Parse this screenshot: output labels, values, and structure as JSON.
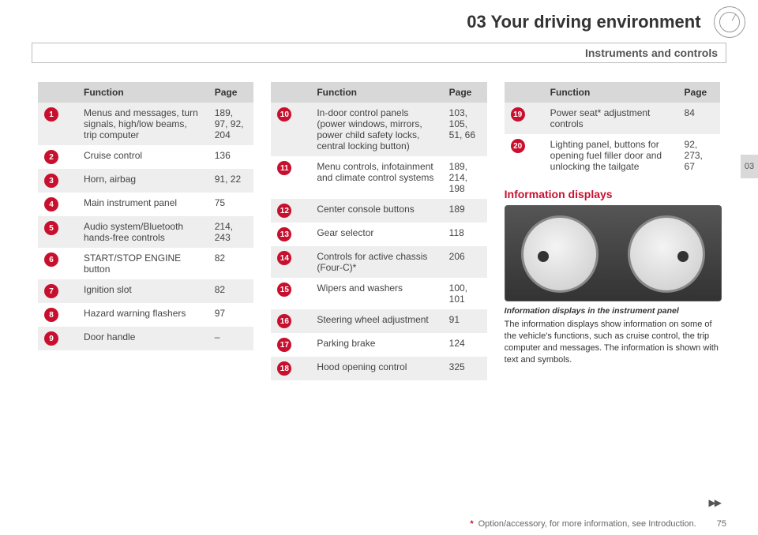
{
  "header": {
    "title": "03 Your driving environment",
    "subtitle": "Instruments and controls"
  },
  "sideTab": "03",
  "tableHeaders": {
    "func": "Function",
    "page": "Page"
  },
  "bullet_colors": {
    "default": "#c8102e",
    "alt": "#8a1a1a"
  },
  "col1": [
    {
      "n": "1",
      "func": "Menus and messages, turn signals, high/low beams, trip computer",
      "page": "189, 97, 92, 204"
    },
    {
      "n": "2",
      "func": "Cruise control",
      "page": "136"
    },
    {
      "n": "3",
      "func": "Horn, airbag",
      "page": "91, 22"
    },
    {
      "n": "4",
      "func": "Main instrument panel",
      "page": "75"
    },
    {
      "n": "5",
      "func": "Audio system/Bluetooth hands-free controls",
      "page": "214, 243"
    },
    {
      "n": "6",
      "func": "START/STOP ENGINE button",
      "page": "82"
    },
    {
      "n": "7",
      "func": "Ignition slot",
      "page": "82"
    },
    {
      "n": "8",
      "func": "Hazard warning flashers",
      "page": "97"
    },
    {
      "n": "9",
      "func": "Door handle",
      "page": "–"
    }
  ],
  "col2": [
    {
      "n": "10",
      "func": "In-door control panels (power windows, mirrors, power child safety locks, central locking button)",
      "page": "103, 105, 51, 66"
    },
    {
      "n": "11",
      "func": "Menu controls, infotainment and climate control systems",
      "page": "189, 214, 198"
    },
    {
      "n": "12",
      "func": "Center console buttons",
      "page": "189"
    },
    {
      "n": "13",
      "func": "Gear selector",
      "page": "118"
    },
    {
      "n": "14",
      "func": "Controls for active chassis (Four-C)*",
      "page": "206"
    },
    {
      "n": "15",
      "func": "Wipers and washers",
      "page": "100, 101"
    },
    {
      "n": "16",
      "func": "Steering wheel adjustment",
      "page": "91"
    },
    {
      "n": "17",
      "func": "Parking brake",
      "page": "124"
    },
    {
      "n": "18",
      "func": "Hood opening control",
      "page": "325"
    }
  ],
  "col3": [
    {
      "n": "19",
      "func": "Power seat* adjustment controls",
      "page": "84"
    },
    {
      "n": "20",
      "func": "Lighting panel, buttons for opening fuel filler door and unlocking the tailgate",
      "page": "92, 273, 67"
    }
  ],
  "section": {
    "heading": "Information displays",
    "caption": "Information displays in the instrument panel",
    "body": "The information displays show information on some of the vehicle's functions, such as cruise control, the trip computer and messages. The information is shown with text and symbols."
  },
  "footer": {
    "note": "Option/accessory, for more information, see Introduction.",
    "page": "75"
  }
}
